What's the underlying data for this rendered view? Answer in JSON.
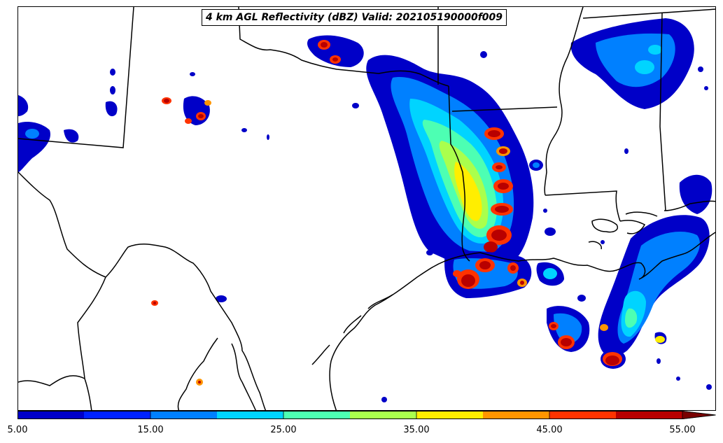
{
  "title": "4 km AGL Reflectivity (dBZ) Valid: 202105190000f009",
  "colorbar": {
    "levels": [
      5,
      10,
      15,
      20,
      25,
      30,
      35,
      40,
      45,
      50,
      55
    ],
    "colors": [
      "#0000c8",
      "#0022ff",
      "#0080ff",
      "#00d4ff",
      "#4dffb3",
      "#aaff4d",
      "#ffee00",
      "#ff9500",
      "#ff3300",
      "#b80000"
    ],
    "extend_color": "#7a0000",
    "ticks": [
      "5.00",
      "15.00",
      "25.00",
      "35.00",
      "45.00",
      "55.00"
    ]
  }
}
